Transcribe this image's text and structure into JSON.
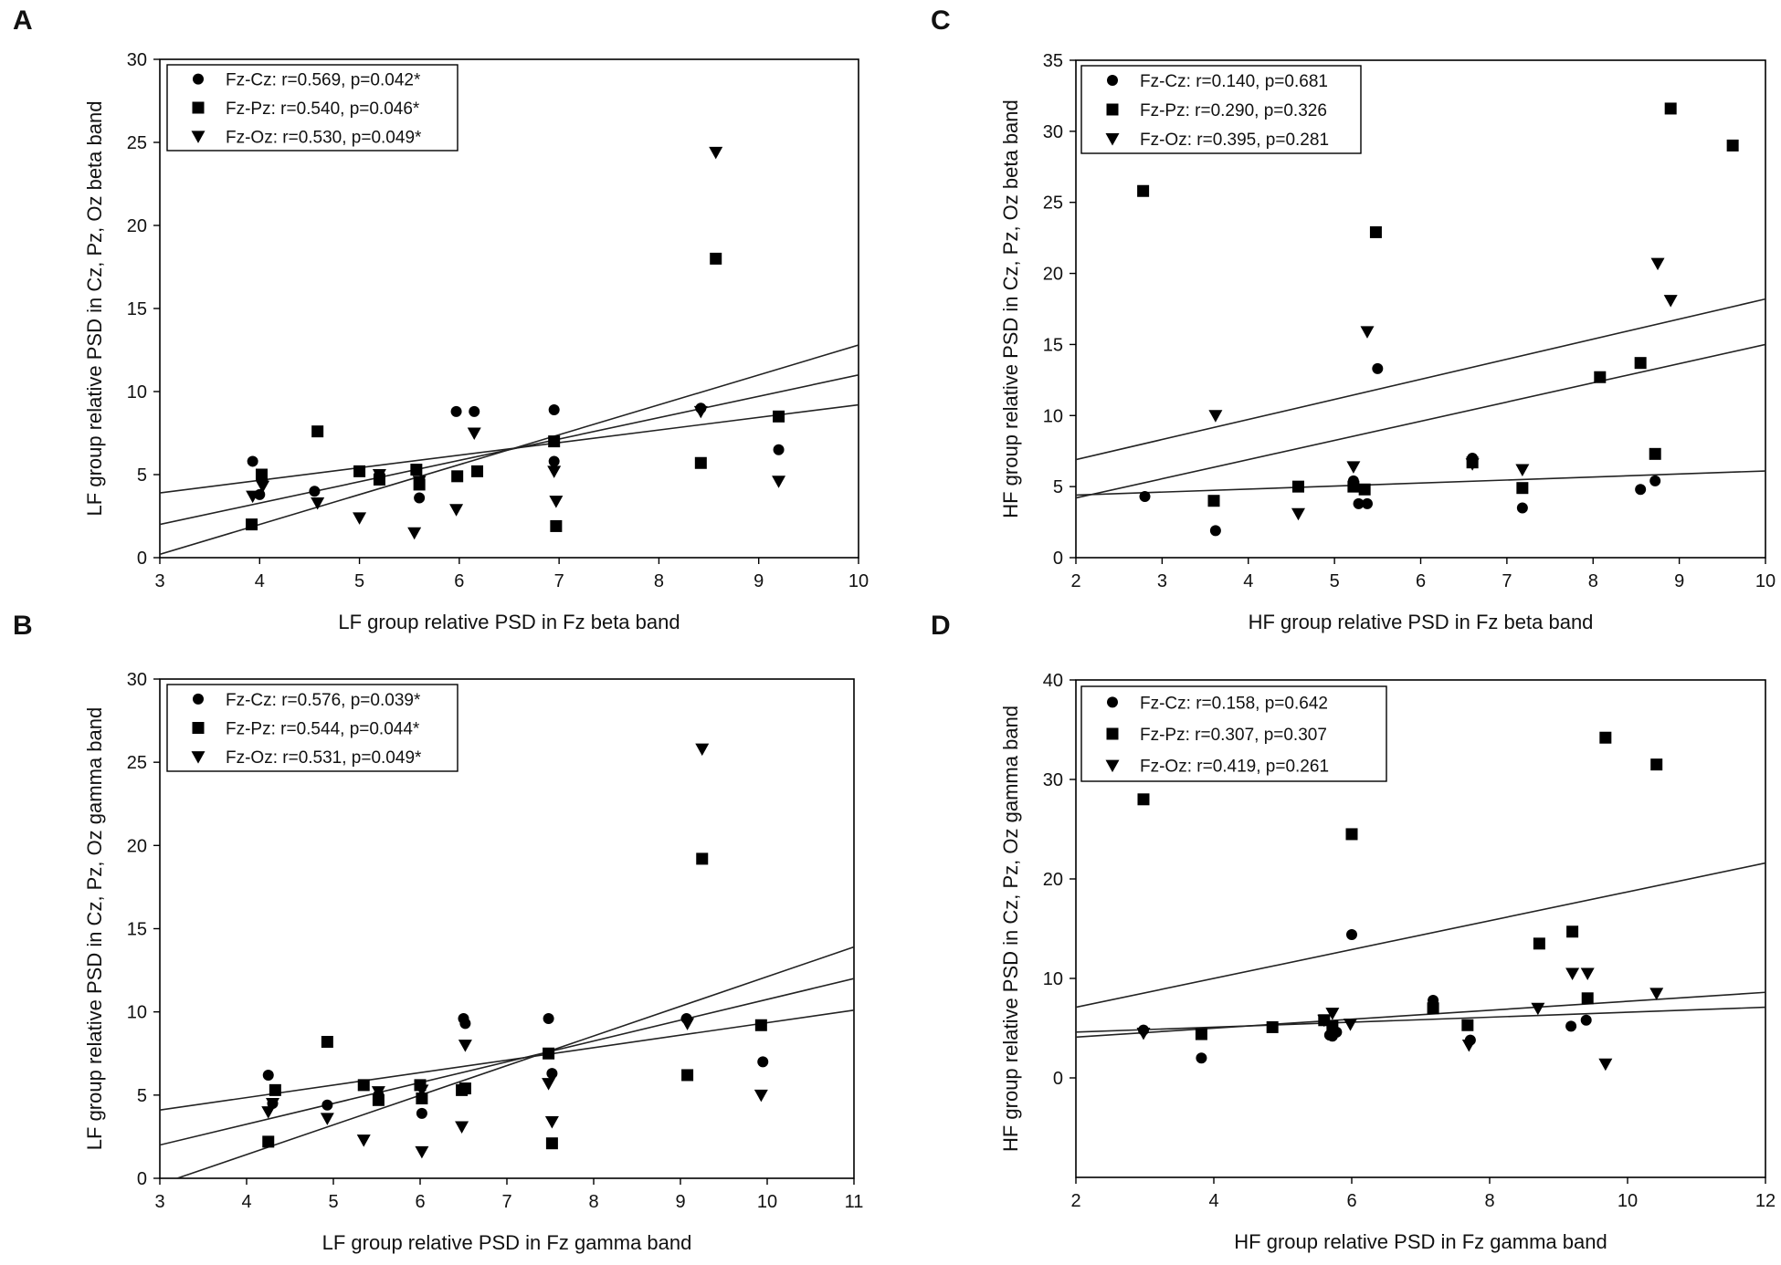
{
  "figure": {
    "panel_letters": [
      "A",
      "B",
      "C",
      "D"
    ]
  },
  "chart_data": [
    {
      "type": "scatter",
      "panel": "A",
      "xlabel": "LF group relative PSD in Fz beta band",
      "ylabel": "LF group relative PSD in Cz, Pz, Oz beta band",
      "xlim": [
        3,
        10
      ],
      "ylim": [
        0,
        30
      ],
      "xticks": [
        3,
        4,
        5,
        6,
        7,
        8,
        9,
        10
      ],
      "yticks": [
        0,
        5,
        10,
        15,
        20,
        25,
        30
      ],
      "legend_position": "top-left",
      "series": [
        {
          "name": "Fz-Cz: r=0.569, p=0.042*",
          "marker": "circle",
          "points": [
            [
              3.93,
              5.8
            ],
            [
              4.0,
              3.8
            ],
            [
              4.03,
              4.6
            ],
            [
              4.55,
              4.0
            ],
            [
              5.2,
              5.0
            ],
            [
              5.6,
              3.6
            ],
            [
              5.97,
              8.8
            ],
            [
              6.15,
              8.8
            ],
            [
              6.95,
              8.9
            ],
            [
              6.95,
              5.8
            ],
            [
              8.42,
              9.0
            ],
            [
              9.2,
              6.5
            ]
          ]
        },
        {
          "name": "Fz-Pz: r=0.540, p=0.046*",
          "marker": "square",
          "points": [
            [
              3.92,
              2.0
            ],
            [
              4.02,
              5.0
            ],
            [
              4.58,
              7.6
            ],
            [
              5.0,
              5.2
            ],
            [
              5.2,
              4.7
            ],
            [
              5.57,
              5.3
            ],
            [
              5.6,
              4.4
            ],
            [
              5.98,
              4.9
            ],
            [
              6.18,
              5.2
            ],
            [
              6.95,
              7.0
            ],
            [
              6.97,
              1.9
            ],
            [
              8.42,
              5.7
            ],
            [
              8.57,
              18.0
            ],
            [
              9.2,
              8.5
            ]
          ]
        },
        {
          "name": "Fz-Oz: r=0.530, p=0.049*",
          "marker": "triangle",
          "points": [
            [
              3.93,
              3.7
            ],
            [
              4.03,
              4.3
            ],
            [
              4.58,
              3.3
            ],
            [
              5.0,
              2.4
            ],
            [
              5.2,
              5.0
            ],
            [
              5.55,
              1.5
            ],
            [
              5.6,
              4.6
            ],
            [
              5.97,
              2.9
            ],
            [
              6.15,
              7.5
            ],
            [
              6.95,
              5.2
            ],
            [
              6.97,
              3.4
            ],
            [
              8.42,
              8.8
            ],
            [
              8.57,
              24.4
            ],
            [
              9.2,
              4.6
            ]
          ]
        }
      ],
      "fit_lines": [
        {
          "series": "Fz-Cz",
          "x": [
            3,
            10
          ],
          "y": [
            3.9,
            9.2
          ]
        },
        {
          "series": "Fz-Pz",
          "x": [
            3,
            10
          ],
          "y": [
            2.0,
            11.0
          ]
        },
        {
          "series": "Fz-Oz",
          "x": [
            3,
            10
          ],
          "y": [
            0.2,
            12.8
          ]
        }
      ]
    },
    {
      "type": "scatter",
      "panel": "B",
      "xlabel": "LF group relative PSD in Fz gamma band",
      "ylabel": "LF group relative PSD in Cz, Pz, Oz gamma band",
      "xlim": [
        3,
        11
      ],
      "ylim": [
        0,
        30
      ],
      "xticks": [
        3,
        4,
        5,
        6,
        7,
        8,
        9,
        10,
        11
      ],
      "yticks": [
        0,
        5,
        10,
        15,
        20,
        25,
        30
      ],
      "legend_position": "top-left",
      "series": [
        {
          "name": "Fz-Cz: r=0.576, p=0.039*",
          "marker": "circle",
          "points": [
            [
              4.25,
              6.2
            ],
            [
              4.3,
              4.5
            ],
            [
              4.93,
              4.4
            ],
            [
              5.52,
              5.0
            ],
            [
              6.02,
              3.9
            ],
            [
              6.5,
              9.6
            ],
            [
              6.52,
              9.3
            ],
            [
              7.48,
              9.6
            ],
            [
              7.52,
              6.3
            ],
            [
              9.07,
              9.6
            ],
            [
              9.95,
              7.0
            ]
          ]
        },
        {
          "name": "Fz-Pz: r=0.544, p=0.044*",
          "marker": "square",
          "points": [
            [
              4.25,
              2.2
            ],
            [
              4.33,
              5.3
            ],
            [
              4.93,
              8.2
            ],
            [
              5.35,
              5.6
            ],
            [
              5.52,
              4.7
            ],
            [
              6.0,
              5.6
            ],
            [
              6.02,
              4.8
            ],
            [
              6.48,
              5.3
            ],
            [
              6.52,
              5.4
            ],
            [
              7.48,
              7.5
            ],
            [
              7.52,
              2.1
            ],
            [
              9.08,
              6.2
            ],
            [
              9.25,
              19.2
            ],
            [
              9.93,
              9.2
            ]
          ]
        },
        {
          "name": "Fz-Oz: r=0.531, p=0.049*",
          "marker": "triangle",
          "points": [
            [
              4.25,
              4.0
            ],
            [
              4.3,
              4.5
            ],
            [
              4.93,
              3.6
            ],
            [
              5.35,
              2.3
            ],
            [
              5.52,
              5.2
            ],
            [
              6.02,
              1.6
            ],
            [
              6.02,
              5.3
            ],
            [
              6.48,
              3.1
            ],
            [
              6.52,
              8.0
            ],
            [
              7.48,
              5.7
            ],
            [
              7.52,
              3.4
            ],
            [
              9.08,
              9.3
            ],
            [
              9.25,
              25.8
            ],
            [
              9.93,
              5.0
            ]
          ]
        }
      ],
      "fit_lines": [
        {
          "series": "Fz-Cz",
          "x": [
            3,
            11
          ],
          "y": [
            4.1,
            10.1
          ]
        },
        {
          "series": "Fz-Pz",
          "x": [
            3,
            11
          ],
          "y": [
            2.0,
            12.0
          ]
        },
        {
          "series": "Fz-Oz",
          "x": [
            3.2,
            11
          ],
          "y": [
            0.0,
            13.9
          ]
        }
      ]
    },
    {
      "type": "scatter",
      "panel": "C",
      "xlabel": "HF group relative PSD in Fz beta band",
      "ylabel": "HF group relative PSD in Cz, Pz, Oz beta band",
      "xlim": [
        2,
        10
      ],
      "ylim": [
        0,
        35
      ],
      "xticks": [
        2,
        3,
        4,
        5,
        6,
        7,
        8,
        9,
        10
      ],
      "yticks": [
        0,
        5,
        10,
        15,
        20,
        25,
        30,
        35
      ],
      "legend_position": "top-left",
      "series": [
        {
          "name": "Fz-Cz: r=0.140, p=0.681",
          "marker": "circle",
          "points": [
            [
              2.8,
              4.3
            ],
            [
              3.62,
              1.9
            ],
            [
              5.22,
              5.4
            ],
            [
              5.28,
              3.8
            ],
            [
              5.38,
              3.8
            ],
            [
              5.5,
              13.3
            ],
            [
              6.6,
              7.0
            ],
            [
              7.18,
              3.5
            ],
            [
              8.55,
              4.8
            ],
            [
              8.72,
              5.4
            ]
          ]
        },
        {
          "name": "Fz-Pz: r=0.290, p=0.326",
          "marker": "square",
          "points": [
            [
              2.78,
              25.8
            ],
            [
              3.6,
              4.0
            ],
            [
              4.58,
              5.0
            ],
            [
              5.22,
              5.0
            ],
            [
              5.35,
              4.8
            ],
            [
              5.48,
              22.9
            ],
            [
              6.6,
              6.7
            ],
            [
              7.18,
              4.9
            ],
            [
              8.08,
              12.7
            ],
            [
              8.55,
              13.7
            ],
            [
              8.72,
              7.3
            ],
            [
              8.9,
              31.6
            ],
            [
              9.62,
              29.0
            ]
          ]
        },
        {
          "name": "Fz-Oz: r=0.395, p=0.281",
          "marker": "triangle",
          "points": [
            [
              3.62,
              10.0
            ],
            [
              4.58,
              3.1
            ],
            [
              5.22,
              6.4
            ],
            [
              5.38,
              15.9
            ],
            [
              6.6,
              6.6
            ],
            [
              7.18,
              6.2
            ],
            [
              8.75,
              20.7
            ],
            [
              8.9,
              18.1
            ]
          ]
        }
      ],
      "fit_lines": [
        {
          "series": "Fz-Cz",
          "x": [
            2,
            10
          ],
          "y": [
            4.4,
            6.1
          ]
        },
        {
          "series": "Fz-Pz",
          "x": [
            2,
            10
          ],
          "y": [
            4.2,
            15.0
          ]
        },
        {
          "series": "Fz-Oz",
          "x": [
            2,
            10
          ],
          "y": [
            6.9,
            18.2
          ]
        }
      ]
    },
    {
      "type": "scatter",
      "panel": "D",
      "xlabel": "HF group relative PSD in Fz gamma band",
      "ylabel": "HF group relative PSD in Cz, Pz, Oz gamma band",
      "xlim": [
        2,
        12
      ],
      "ylim": [
        -10,
        40
      ],
      "xticks": [
        2,
        4,
        6,
        8,
        10,
        12
      ],
      "yticks": [
        0,
        10,
        20,
        30,
        40
      ],
      "legend_position": "top-left",
      "series": [
        {
          "name": "Fz-Cz: r=0.158, p=0.642",
          "marker": "circle",
          "points": [
            [
              2.98,
              4.8
            ],
            [
              3.82,
              2.0
            ],
            [
              5.68,
              4.3
            ],
            [
              5.72,
              4.2
            ],
            [
              5.78,
              4.6
            ],
            [
              6.0,
              14.4
            ],
            [
              7.18,
              7.8
            ],
            [
              7.72,
              3.8
            ],
            [
              9.18,
              5.2
            ],
            [
              9.4,
              5.8
            ]
          ]
        },
        {
          "name": "Fz-Pz: r=0.307, p=0.307",
          "marker": "square",
          "points": [
            [
              2.98,
              28.0
            ],
            [
              3.82,
              4.4
            ],
            [
              4.85,
              5.1
            ],
            [
              5.6,
              5.8
            ],
            [
              5.72,
              5.2
            ],
            [
              6.0,
              24.5
            ],
            [
              7.18,
              7.0
            ],
            [
              7.68,
              5.3
            ],
            [
              8.72,
              13.5
            ],
            [
              9.2,
              14.7
            ],
            [
              9.42,
              8.0
            ],
            [
              9.68,
              34.2
            ],
            [
              10.42,
              31.5
            ]
          ]
        },
        {
          "name": "Fz-Oz: r=0.419, p=0.261",
          "marker": "triangle",
          "points": [
            [
              2.98,
              4.5
            ],
            [
              5.6,
              5.8
            ],
            [
              5.72,
              6.5
            ],
            [
              5.98,
              5.4
            ],
            [
              7.7,
              3.3
            ],
            [
              8.7,
              7.0
            ],
            [
              9.2,
              10.5
            ],
            [
              9.42,
              10.5
            ],
            [
              9.68,
              1.4
            ],
            [
              10.42,
              8.5
            ]
          ]
        }
      ],
      "fit_lines": [
        {
          "series": "Fz-Cz",
          "x": [
            2,
            12
          ],
          "y": [
            4.6,
            7.1
          ]
        },
        {
          "series": "Fz-Pz",
          "x": [
            2,
            12
          ],
          "y": [
            4.1,
            8.6
          ]
        },
        {
          "series": "Fz-Oz",
          "x": [
            2,
            12
          ],
          "y": [
            7.1,
            21.6
          ]
        }
      ]
    }
  ]
}
